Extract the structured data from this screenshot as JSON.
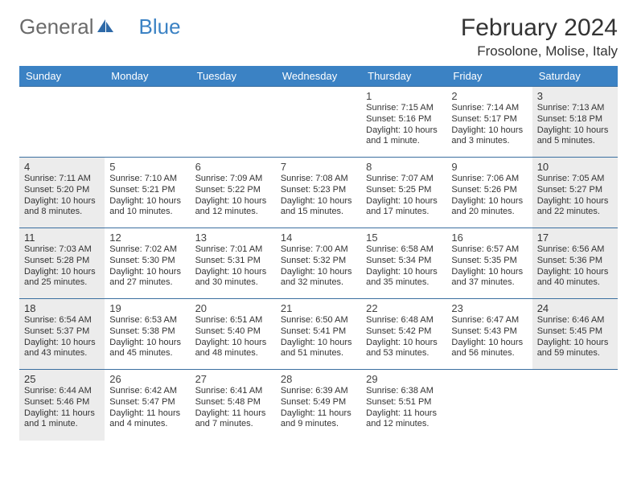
{
  "logo": {
    "part1": "General",
    "part2": "Blue"
  },
  "title": "February 2024",
  "location": "Frosolone, Molise, Italy",
  "styling": {
    "page_bg": "#ffffff",
    "header_bg": "#3b82c4",
    "header_text": "#ffffff",
    "row_border": "#3b6fa0",
    "weekend_bg": "#ececec",
    "body_text": "#333333",
    "logo_general_color": "#6b6b6b",
    "logo_blue_color": "#3b82c4",
    "month_title_fontsize": 30,
    "location_fontsize": 17,
    "header_fontsize": 13,
    "cell_fontsize": 11,
    "daynum_fontsize": 13
  },
  "weekdays": [
    "Sunday",
    "Monday",
    "Tuesday",
    "Wednesday",
    "Thursday",
    "Friday",
    "Saturday"
  ],
  "weeks": [
    [
      null,
      null,
      null,
      null,
      {
        "n": "1",
        "sr": "Sunrise: 7:15 AM",
        "ss": "Sunset: 5:16 PM",
        "d1": "Daylight: 10 hours",
        "d2": "and 1 minute."
      },
      {
        "n": "2",
        "sr": "Sunrise: 7:14 AM",
        "ss": "Sunset: 5:17 PM",
        "d1": "Daylight: 10 hours",
        "d2": "and 3 minutes."
      },
      {
        "n": "3",
        "sr": "Sunrise: 7:13 AM",
        "ss": "Sunset: 5:18 PM",
        "d1": "Daylight: 10 hours",
        "d2": "and 5 minutes."
      }
    ],
    [
      {
        "n": "4",
        "sr": "Sunrise: 7:11 AM",
        "ss": "Sunset: 5:20 PM",
        "d1": "Daylight: 10 hours",
        "d2": "and 8 minutes."
      },
      {
        "n": "5",
        "sr": "Sunrise: 7:10 AM",
        "ss": "Sunset: 5:21 PM",
        "d1": "Daylight: 10 hours",
        "d2": "and 10 minutes."
      },
      {
        "n": "6",
        "sr": "Sunrise: 7:09 AM",
        "ss": "Sunset: 5:22 PM",
        "d1": "Daylight: 10 hours",
        "d2": "and 12 minutes."
      },
      {
        "n": "7",
        "sr": "Sunrise: 7:08 AM",
        "ss": "Sunset: 5:23 PM",
        "d1": "Daylight: 10 hours",
        "d2": "and 15 minutes."
      },
      {
        "n": "8",
        "sr": "Sunrise: 7:07 AM",
        "ss": "Sunset: 5:25 PM",
        "d1": "Daylight: 10 hours",
        "d2": "and 17 minutes."
      },
      {
        "n": "9",
        "sr": "Sunrise: 7:06 AM",
        "ss": "Sunset: 5:26 PM",
        "d1": "Daylight: 10 hours",
        "d2": "and 20 minutes."
      },
      {
        "n": "10",
        "sr": "Sunrise: 7:05 AM",
        "ss": "Sunset: 5:27 PM",
        "d1": "Daylight: 10 hours",
        "d2": "and 22 minutes."
      }
    ],
    [
      {
        "n": "11",
        "sr": "Sunrise: 7:03 AM",
        "ss": "Sunset: 5:28 PM",
        "d1": "Daylight: 10 hours",
        "d2": "and 25 minutes."
      },
      {
        "n": "12",
        "sr": "Sunrise: 7:02 AM",
        "ss": "Sunset: 5:30 PM",
        "d1": "Daylight: 10 hours",
        "d2": "and 27 minutes."
      },
      {
        "n": "13",
        "sr": "Sunrise: 7:01 AM",
        "ss": "Sunset: 5:31 PM",
        "d1": "Daylight: 10 hours",
        "d2": "and 30 minutes."
      },
      {
        "n": "14",
        "sr": "Sunrise: 7:00 AM",
        "ss": "Sunset: 5:32 PM",
        "d1": "Daylight: 10 hours",
        "d2": "and 32 minutes."
      },
      {
        "n": "15",
        "sr": "Sunrise: 6:58 AM",
        "ss": "Sunset: 5:34 PM",
        "d1": "Daylight: 10 hours",
        "d2": "and 35 minutes."
      },
      {
        "n": "16",
        "sr": "Sunrise: 6:57 AM",
        "ss": "Sunset: 5:35 PM",
        "d1": "Daylight: 10 hours",
        "d2": "and 37 minutes."
      },
      {
        "n": "17",
        "sr": "Sunrise: 6:56 AM",
        "ss": "Sunset: 5:36 PM",
        "d1": "Daylight: 10 hours",
        "d2": "and 40 minutes."
      }
    ],
    [
      {
        "n": "18",
        "sr": "Sunrise: 6:54 AM",
        "ss": "Sunset: 5:37 PM",
        "d1": "Daylight: 10 hours",
        "d2": "and 43 minutes."
      },
      {
        "n": "19",
        "sr": "Sunrise: 6:53 AM",
        "ss": "Sunset: 5:38 PM",
        "d1": "Daylight: 10 hours",
        "d2": "and 45 minutes."
      },
      {
        "n": "20",
        "sr": "Sunrise: 6:51 AM",
        "ss": "Sunset: 5:40 PM",
        "d1": "Daylight: 10 hours",
        "d2": "and 48 minutes."
      },
      {
        "n": "21",
        "sr": "Sunrise: 6:50 AM",
        "ss": "Sunset: 5:41 PM",
        "d1": "Daylight: 10 hours",
        "d2": "and 51 minutes."
      },
      {
        "n": "22",
        "sr": "Sunrise: 6:48 AM",
        "ss": "Sunset: 5:42 PM",
        "d1": "Daylight: 10 hours",
        "d2": "and 53 minutes."
      },
      {
        "n": "23",
        "sr": "Sunrise: 6:47 AM",
        "ss": "Sunset: 5:43 PM",
        "d1": "Daylight: 10 hours",
        "d2": "and 56 minutes."
      },
      {
        "n": "24",
        "sr": "Sunrise: 6:46 AM",
        "ss": "Sunset: 5:45 PM",
        "d1": "Daylight: 10 hours",
        "d2": "and 59 minutes."
      }
    ],
    [
      {
        "n": "25",
        "sr": "Sunrise: 6:44 AM",
        "ss": "Sunset: 5:46 PM",
        "d1": "Daylight: 11 hours",
        "d2": "and 1 minute."
      },
      {
        "n": "26",
        "sr": "Sunrise: 6:42 AM",
        "ss": "Sunset: 5:47 PM",
        "d1": "Daylight: 11 hours",
        "d2": "and 4 minutes."
      },
      {
        "n": "27",
        "sr": "Sunrise: 6:41 AM",
        "ss": "Sunset: 5:48 PM",
        "d1": "Daylight: 11 hours",
        "d2": "and 7 minutes."
      },
      {
        "n": "28",
        "sr": "Sunrise: 6:39 AM",
        "ss": "Sunset: 5:49 PM",
        "d1": "Daylight: 11 hours",
        "d2": "and 9 minutes."
      },
      {
        "n": "29",
        "sr": "Sunrise: 6:38 AM",
        "ss": "Sunset: 5:51 PM",
        "d1": "Daylight: 11 hours",
        "d2": "and 12 minutes."
      },
      null,
      null
    ]
  ]
}
